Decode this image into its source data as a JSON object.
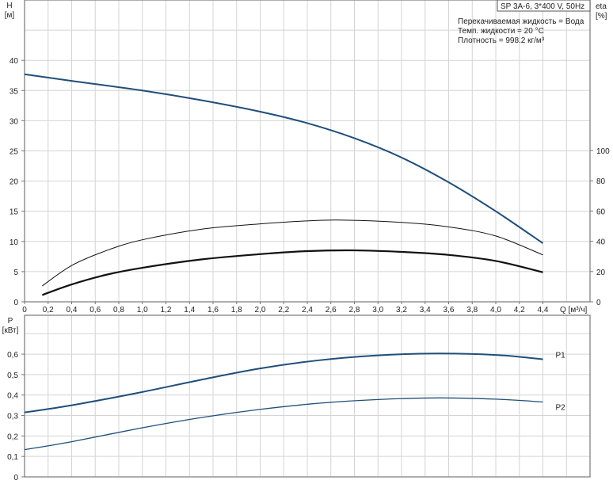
{
  "title_box": "SP 3A-6, 3*400 V, 50Hz",
  "info": [
    "Перекачиваемая жидкость = Вода",
    "Темп. жидкости = 20 °C",
    "Плотность = 998.2 кг/м³"
  ],
  "colors": {
    "blue": "#1f4e7a",
    "black": "#111111",
    "grid": "#d4d4d4"
  },
  "chart_data": [
    {
      "type": "line",
      "xlabel": "Q [м³/ч]",
      "ylabel": "H\n[м]",
      "y2label": "eta\n[%]",
      "xlim": [
        0,
        4.8
      ],
      "ylim": [
        0,
        50
      ],
      "y2lim": [
        0,
        130
      ],
      "x_ticks": [
        "0",
        "0,2",
        "0,4",
        "0,6",
        "0,8",
        "1,0",
        "1,2",
        "1,4",
        "1,6",
        "1,8",
        "2,0",
        "2,2",
        "2,4",
        "2,6",
        "2,8",
        "3,0",
        "3,2",
        "3,4",
        "3,6",
        "3,8",
        "4,0",
        "4,2",
        "4,4"
      ],
      "y_ticks": [
        "0",
        "5",
        "10",
        "15",
        "20",
        "25",
        "30",
        "35",
        "40"
      ],
      "y2_ticks": [
        "0",
        "20",
        "40",
        "60",
        "80",
        "100"
      ],
      "grid": true,
      "series": [
        {
          "axis": "H",
          "color": "#1f4e7a",
          "x": [
            0,
            0.4,
            1.0,
            1.5,
            2.0,
            2.4,
            2.8,
            3.2,
            3.6,
            4.0,
            4.4
          ],
          "y": [
            37.7,
            36.6,
            35.0,
            33.4,
            31.5,
            29.6,
            27.1,
            23.9,
            19.8,
            15.0,
            9.7
          ]
        },
        {
          "axis": "eta",
          "color": "#111111",
          "x": [
            0.15,
            0.4,
            0.7,
            1.0,
            1.5,
            2.0,
            2.4,
            2.7,
            3.2,
            3.6,
            4.0,
            4.4
          ],
          "y": [
            10.5,
            24,
            34,
            41,
            48,
            51.5,
            53.5,
            54,
            52.5,
            49.5,
            43.5,
            31
          ]
        },
        {
          "axis": "eta",
          "color": "#111111",
          "x": [
            0.15,
            0.4,
            0.7,
            1.0,
            1.5,
            2.0,
            2.4,
            2.8,
            3.2,
            3.6,
            4.0,
            4.4
          ],
          "y": [
            4.5,
            11.5,
            18,
            22.5,
            28,
            31.5,
            33.5,
            34,
            33,
            31,
            27,
            19.5
          ]
        }
      ]
    },
    {
      "type": "line",
      "xlabel": "",
      "ylabel": "P\n[кВт]",
      "xlim": [
        0,
        4.8
      ],
      "ylim": [
        0,
        0.79
      ],
      "y_ticks": [
        "0",
        "0,1",
        "0,2",
        "0,3",
        "0,4",
        "0,5",
        "0,6"
      ],
      "grid": true,
      "series": [
        {
          "name": "P1",
          "color": "#1f4e7a",
          "x": [
            0,
            0.4,
            1.0,
            1.5,
            2.0,
            2.5,
            3.0,
            3.5,
            4.0,
            4.4
          ],
          "y": [
            0.315,
            0.35,
            0.415,
            0.475,
            0.53,
            0.57,
            0.594,
            0.603,
            0.596,
            0.575
          ]
        },
        {
          "name": "P2",
          "color": "#1f4e7a",
          "x": [
            0,
            0.4,
            1.0,
            1.5,
            2.0,
            2.5,
            3.0,
            3.5,
            4.0,
            4.4
          ],
          "y": [
            0.133,
            0.172,
            0.24,
            0.29,
            0.33,
            0.36,
            0.378,
            0.386,
            0.38,
            0.366
          ]
        }
      ]
    }
  ]
}
